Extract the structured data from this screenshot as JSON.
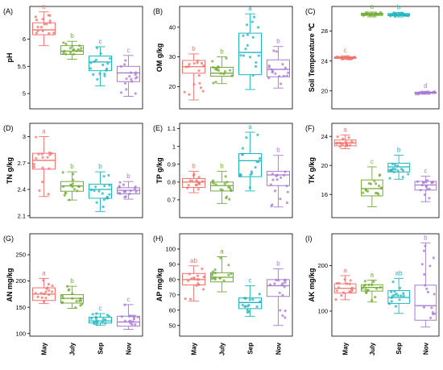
{
  "colors": [
    "#f0746c",
    "#74ab35",
    "#1fb5be",
    "#a77bd2"
  ],
  "chart_data": [
    {
      "type": "box",
      "panel": "(A)",
      "ylabel": "pH",
      "ylim": [
        4.72,
        6.6
      ],
      "yticks": [
        5.0,
        5.5,
        6.0
      ],
      "categories": [
        "May",
        "July",
        "Sep",
        "Nov"
      ],
      "boxes": [
        {
          "min": 5.88,
          "q1": 6.08,
          "median": 6.17,
          "q3": 6.3,
          "max": 6.5
        },
        {
          "min": 5.63,
          "q1": 5.72,
          "median": 5.78,
          "q3": 5.88,
          "max": 5.96
        },
        {
          "min": 5.14,
          "q1": 5.42,
          "median": 5.58,
          "q3": 5.69,
          "max": 5.86
        },
        {
          "min": 4.95,
          "q1": 5.22,
          "median": 5.38,
          "q3": 5.5,
          "max": 5.7
        }
      ],
      "letters": [
        "a",
        "b",
        "c",
        "c"
      ]
    },
    {
      "type": "box",
      "panel": "(B)",
      "ylabel": "OM g/kg",
      "ylim": [
        12.5,
        47
      ],
      "yticks": [
        20,
        30,
        40
      ],
      "categories": [
        "May",
        "July",
        "Sep",
        "Nov"
      ],
      "boxes": [
        {
          "min": 15.5,
          "q1": 24.5,
          "median": 26.7,
          "q3": 28.8,
          "max": 31
        },
        {
          "min": 21,
          "q1": 23.5,
          "median": 24.5,
          "q3": 26.5,
          "max": 30
        },
        {
          "min": 19,
          "q1": 24,
          "median": 31.5,
          "q3": 38,
          "max": 44.5
        },
        {
          "min": 19.5,
          "q1": 23.3,
          "median": 25.8,
          "q3": 29,
          "max": 33.5
        }
      ],
      "letters": [
        "b",
        "b",
        "a",
        "b"
      ]
    },
    {
      "type": "box",
      "panel": "(C)",
      "ylabel": "Soil Temperature ℃",
      "ylim": [
        17.6,
        31.3
      ],
      "yticks": [
        20,
        24,
        28
      ],
      "categories": [
        "May",
        "July",
        "Sep",
        "Nov"
      ],
      "boxes": [
        {
          "min": 24.2,
          "q1": 24.35,
          "median": 24.45,
          "q3": 24.55,
          "max": 24.7
        },
        {
          "min": 29.9,
          "q1": 30.1,
          "median": 30.25,
          "q3": 30.4,
          "max": 30.55
        },
        {
          "min": 29.9,
          "q1": 30.05,
          "median": 30.2,
          "q3": 30.35,
          "max": 30.5
        },
        {
          "min": 19.55,
          "q1": 19.68,
          "median": 19.75,
          "q3": 19.82,
          "max": 19.95
        }
      ],
      "letters": [
        "c",
        "a",
        "b",
        "d"
      ]
    },
    {
      "type": "box",
      "panel": "(D)",
      "ylabel": "TN g/kg",
      "ylim": [
        2.08,
        3.15
      ],
      "yticks": [
        2.1,
        2.4,
        2.7,
        3.0
      ],
      "categories": [
        "May",
        "July",
        "Sep",
        "Nov"
      ],
      "boxes": [
        {
          "min": 2.32,
          "q1": 2.63,
          "median": 2.73,
          "q3": 2.81,
          "max": 3.0
        },
        {
          "min": 2.28,
          "q1": 2.38,
          "median": 2.44,
          "q3": 2.49,
          "max": 2.6
        },
        {
          "min": 2.15,
          "q1": 2.3,
          "median": 2.4,
          "q3": 2.46,
          "max": 2.6
        },
        {
          "min": 2.29,
          "q1": 2.35,
          "median": 2.39,
          "q3": 2.42,
          "max": 2.49
        }
      ],
      "letters": [
        "a",
        "b",
        "b",
        "b"
      ]
    },
    {
      "type": "box",
      "panel": "(E)",
      "ylabel": "TP g/kg",
      "ylim": [
        0.6,
        1.13
      ],
      "yticks": [
        0.7,
        0.8,
        0.9,
        1.0,
        1.1
      ],
      "categories": [
        "May",
        "July",
        "Sep",
        "Nov"
      ],
      "boxes": [
        {
          "min": 0.74,
          "q1": 0.77,
          "median": 0.8,
          "q3": 0.82,
          "max": 0.86
        },
        {
          "min": 0.68,
          "q1": 0.75,
          "median": 0.78,
          "q3": 0.8,
          "max": 0.86
        },
        {
          "min": 0.75,
          "q1": 0.83,
          "median": 0.92,
          "q3": 0.96,
          "max": 1.08
        },
        {
          "min": 0.66,
          "q1": 0.78,
          "median": 0.84,
          "q3": 0.86,
          "max": 0.95
        }
      ],
      "letters": [
        "b",
        "b",
        "a",
        "b"
      ]
    },
    {
      "type": "box",
      "panel": "(F)",
      "ylabel": "TK g/kg",
      "ylim": [
        12.8,
        25.8
      ],
      "yticks": [
        16,
        20,
        24
      ],
      "categories": [
        "May",
        "July",
        "Sep",
        "Nov"
      ],
      "boxes": [
        {
          "min": 22.3,
          "q1": 22.7,
          "median": 23.1,
          "q3": 23.5,
          "max": 24.2
        },
        {
          "min": 14.3,
          "q1": 15.8,
          "median": 16.8,
          "q3": 18.0,
          "max": 19.8
        },
        {
          "min": 18.1,
          "q1": 19.1,
          "median": 19.8,
          "q3": 20.3,
          "max": 21.4
        },
        {
          "min": 15.0,
          "q1": 16.6,
          "median": 17.3,
          "q3": 17.8,
          "max": 18.5
        }
      ],
      "letters": [
        "a",
        "c",
        "b",
        "c"
      ]
    },
    {
      "type": "box",
      "panel": "(G)",
      "ylabel": "AN mg/kg",
      "ylim": [
        95,
        290
      ],
      "yticks": [
        100,
        150,
        200,
        250
      ],
      "categories": [
        "May",
        "July",
        "Sep",
        "Nov"
      ],
      "boxes": [
        {
          "min": 157,
          "q1": 163,
          "median": 175,
          "q3": 187,
          "max": 205
        },
        {
          "min": 148,
          "q1": 158,
          "median": 167,
          "q3": 174,
          "max": 190
        },
        {
          "min": 116,
          "q1": 120,
          "median": 124,
          "q3": 131,
          "max": 138
        },
        {
          "min": 108,
          "q1": 114,
          "median": 122,
          "q3": 133,
          "max": 155
        }
      ],
      "letters": [
        "a",
        "b",
        "c",
        "c"
      ]
    },
    {
      "type": "box",
      "panel": "(H)",
      "ylabel": "AP mg/kg",
      "ylim": [
        43,
        110
      ],
      "yticks": [
        50,
        60,
        70,
        80,
        90,
        100
      ],
      "categories": [
        "May",
        "July",
        "Sep",
        "Nov"
      ],
      "boxes": [
        {
          "min": 66,
          "q1": 76.5,
          "median": 80,
          "q3": 84,
          "max": 89
        },
        {
          "min": 72,
          "q1": 78.5,
          "median": 81.5,
          "q3": 84.5,
          "max": 95
        },
        {
          "min": 56,
          "q1": 61,
          "median": 65,
          "q3": 68,
          "max": 76
        },
        {
          "min": 50,
          "q1": 69,
          "median": 76,
          "q3": 80,
          "max": 87
        }
      ],
      "letters": [
        "ab",
        "a",
        "c",
        "b"
      ]
    },
    {
      "type": "box",
      "panel": "(I)",
      "ylabel": "AK mg/kg",
      "ylim": [
        45,
        270
      ],
      "yticks": [
        100,
        200
      ],
      "categories": [
        "May",
        "July",
        "Sep",
        "Nov"
      ],
      "boxes": [
        {
          "min": 125,
          "q1": 140,
          "median": 150,
          "q3": 160,
          "max": 178
        },
        {
          "min": 120,
          "q1": 144,
          "median": 152,
          "q3": 158,
          "max": 168
        },
        {
          "min": 95,
          "q1": 117,
          "median": 130,
          "q3": 145,
          "max": 172
        },
        {
          "min": 65,
          "q1": 80,
          "median": 112,
          "q3": 157,
          "max": 250
        }
      ],
      "letters": [
        "a",
        "a",
        "ab",
        "b"
      ]
    }
  ]
}
